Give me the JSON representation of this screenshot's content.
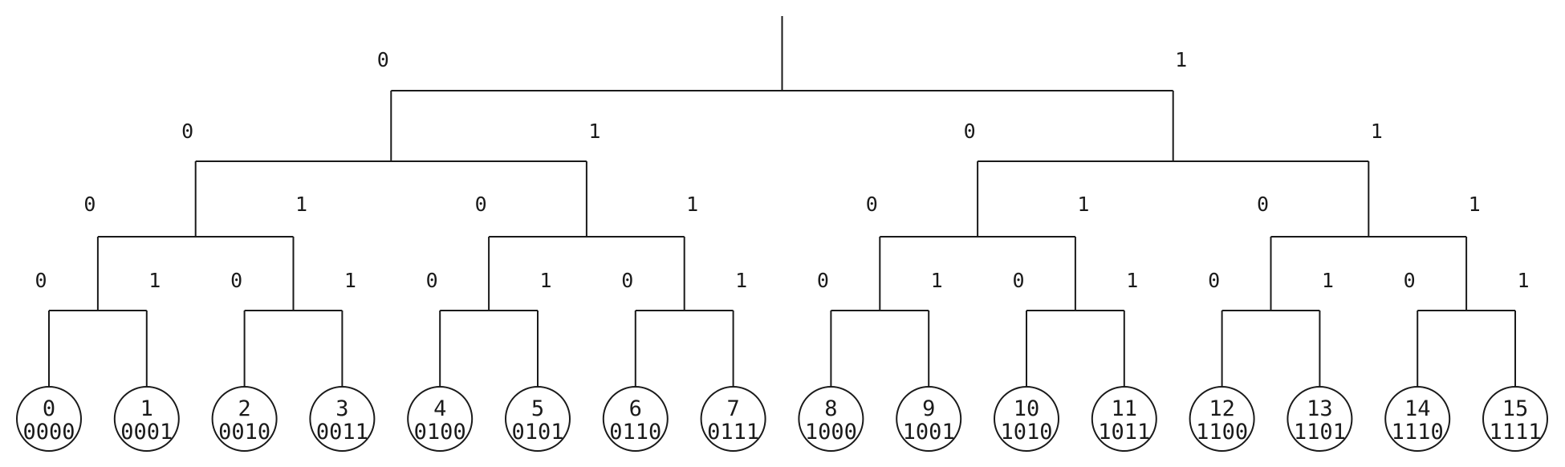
{
  "diagram": {
    "type": "binary-tree",
    "depth": 4,
    "branch_labels": {
      "left": "0",
      "right": "1"
    },
    "leaves": [
      {
        "index": "0",
        "code": "0000"
      },
      {
        "index": "1",
        "code": "0001"
      },
      {
        "index": "2",
        "code": "0010"
      },
      {
        "index": "3",
        "code": "0011"
      },
      {
        "index": "4",
        "code": "0100"
      },
      {
        "index": "5",
        "code": "0101"
      },
      {
        "index": "6",
        "code": "0110"
      },
      {
        "index": "7",
        "code": "0111"
      },
      {
        "index": "8",
        "code": "1000"
      },
      {
        "index": "9",
        "code": "1001"
      },
      {
        "index": "10",
        "code": "1010"
      },
      {
        "index": "11",
        "code": "1011"
      },
      {
        "index": "12",
        "code": "1100"
      },
      {
        "index": "13",
        "code": "1101"
      },
      {
        "index": "14",
        "code": "1110"
      },
      {
        "index": "15",
        "code": "1111"
      }
    ],
    "colors": {
      "line": "#1a1a1a",
      "background": "#ffffff"
    }
  }
}
